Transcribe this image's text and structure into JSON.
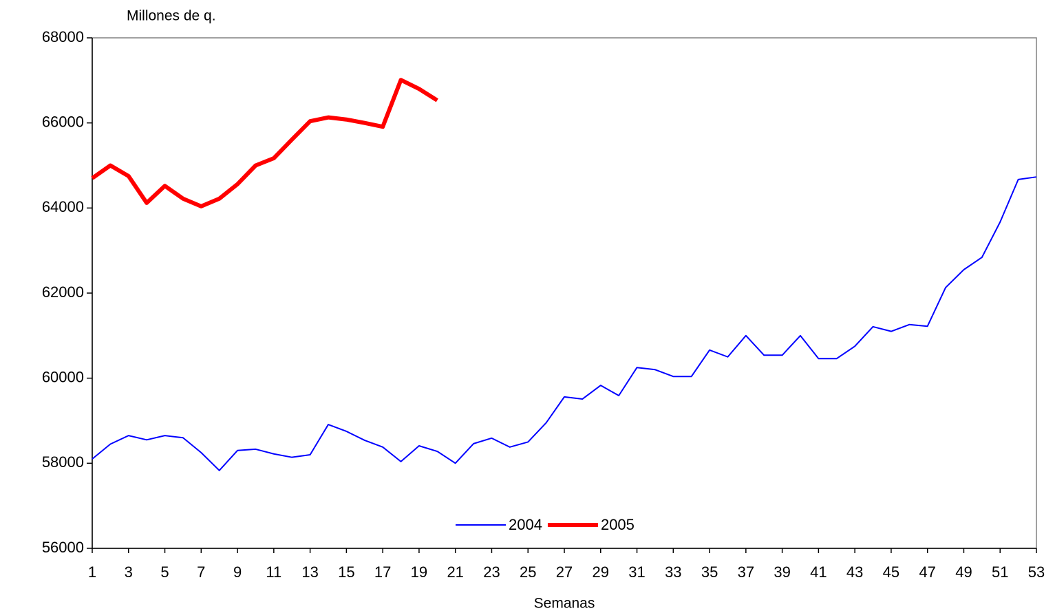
{
  "chart_data": {
    "type": "line",
    "y_label": "Millones de q.",
    "x_label": "Semanas",
    "x": [
      1,
      2,
      3,
      4,
      5,
      6,
      7,
      8,
      9,
      10,
      11,
      12,
      13,
      14,
      15,
      16,
      17,
      18,
      19,
      20,
      21,
      22,
      23,
      24,
      25,
      26,
      27,
      28,
      29,
      30,
      31,
      32,
      33,
      34,
      35,
      36,
      37,
      38,
      39,
      40,
      41,
      42,
      43,
      44,
      45,
      46,
      47,
      48,
      49,
      50,
      51,
      52,
      53
    ],
    "xlim": [
      1,
      53
    ],
    "xticks": [
      1,
      3,
      5,
      7,
      9,
      11,
      13,
      15,
      17,
      19,
      21,
      23,
      25,
      27,
      29,
      31,
      33,
      35,
      37,
      39,
      41,
      43,
      45,
      47,
      49,
      51,
      53
    ],
    "ylim": [
      56000,
      68000
    ],
    "yticks": [
      56000,
      58000,
      60000,
      62000,
      64000,
      66000,
      68000
    ],
    "grid": false,
    "legend": "bottom",
    "series": [
      {
        "name": "2004",
        "color": "#0000ff",
        "width": 2,
        "values": [
          58100,
          58450,
          58650,
          58550,
          58650,
          58600,
          58250,
          57830,
          58300,
          58330,
          58220,
          58140,
          58200,
          58910,
          58750,
          58540,
          58380,
          58040,
          58410,
          58280,
          58000,
          58460,
          58590,
          58380,
          58500,
          58950,
          59560,
          59510,
          59830,
          59590,
          60250,
          60200,
          60040,
          60040,
          60660,
          60500,
          61000,
          60540,
          60540,
          61000,
          60460,
          60460,
          60750,
          61210,
          61100,
          61260,
          61220,
          62130,
          62550,
          62840,
          63670,
          64670,
          64730
        ]
      },
      {
        "name": "2005",
        "color": "#ff0000",
        "width": 6,
        "values": [
          64700,
          65000,
          64750,
          64120,
          64520,
          64220,
          64040,
          64220,
          64560,
          65000,
          65170,
          65610,
          66040,
          66130,
          66080,
          66000,
          65910,
          67010,
          66800,
          66530,
          null,
          null,
          null,
          null,
          null,
          null,
          null,
          null,
          null,
          null,
          null,
          null,
          null,
          null,
          null,
          null,
          null,
          null,
          null,
          null,
          null,
          null,
          null,
          null,
          null,
          null,
          null,
          null,
          null,
          null,
          null,
          null,
          null
        ]
      }
    ]
  }
}
